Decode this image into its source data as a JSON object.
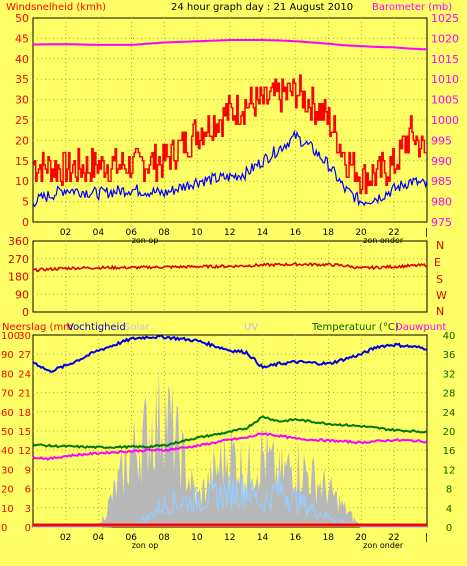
{
  "header": {
    "left_label": "Windsnelheid (kmh)",
    "title": "24 hour graph day : 21 August 2010",
    "right_label": "Barometer (mb)"
  },
  "x_axis": {
    "ticks": [
      "02",
      "04",
      "06",
      "08",
      "10",
      "12",
      "14",
      "16",
      "18",
      "20",
      "22"
    ],
    "sunrise_label": "zon op",
    "sunset_label": "zon onder"
  },
  "wind_panel": {
    "left_ticks": [
      "0",
      "5",
      "10",
      "15",
      "20",
      "25",
      "30",
      "35",
      "40",
      "45",
      "50"
    ],
    "right_ticks": [
      "975",
      "980",
      "985",
      "990",
      "995",
      "1000",
      "1005",
      "1010",
      "1015",
      "1020",
      "1025"
    ]
  },
  "direction_panel": {
    "left_ticks": [
      "0",
      "90",
      "180",
      "270",
      "360"
    ],
    "right_labels": [
      "N",
      "W",
      "S",
      "E",
      "N"
    ]
  },
  "bottom_panel": {
    "labels": {
      "neerslag": "Neerslag (mm",
      "vochtigheid": "Vochtigheid",
      "solar": "Solar",
      "uv": "UV",
      "temperatuur": "Temperatuur (°C)",
      "dauwpunt": "Dauwpunt"
    },
    "humidity_ticks": [
      "0",
      "10",
      "20",
      "30",
      "40",
      "50",
      "60",
      "70",
      "80",
      "90",
      "100"
    ],
    "rain_ticks": [
      "0",
      "3",
      "6",
      "9",
      "12",
      "15",
      "18",
      "21",
      "24",
      "27",
      "30"
    ],
    "temp_ticks": [
      "0",
      "4",
      "8",
      "12",
      "16",
      "20",
      "24",
      "28",
      "32",
      "36",
      "40"
    ]
  },
  "colors": {
    "background": "#ffff66",
    "wind_gust": "#ff0000",
    "wind_avg": "#0000ff",
    "barometer": "#ff00ff",
    "direction": "#dd0000",
    "humidity": "#0000dd",
    "temperature": "#007700",
    "dewpoint": "#ff00ff",
    "solar": "#b8b8b8",
    "uv": "#99ccff",
    "rain": "#ff0000"
  },
  "chart_data": [
    {
      "type": "line",
      "x": [
        0,
        2,
        4,
        6,
        8,
        10,
        12,
        13,
        14,
        15,
        16,
        17,
        18,
        19,
        20,
        21,
        22,
        23,
        24
      ],
      "xlim": [
        0,
        24
      ],
      "ylim": [
        0,
        50
      ],
      "series": [
        {
          "name": "Windsnelheid (kmh)",
          "axis": "left",
          "values": [
            14,
            13,
            14,
            14,
            15,
            22,
            27,
            29,
            29,
            31,
            32,
            29,
            25,
            16,
            11,
            12,
            14,
            22,
            16
          ]
        },
        {
          "name": "",
          "axis": "left",
          "values": [
            5,
            8,
            7,
            8,
            7,
            10,
            11,
            12,
            15,
            18,
            21,
            18,
            14,
            8,
            5,
            6,
            8,
            10,
            9
          ]
        },
        {
          "name": "Barometer (mb)",
          "axis": "right",
          "y2lim": [
            975,
            1025
          ],
          "values": [
            1018.5,
            1018.6,
            1018.4,
            1018.4,
            1019.0,
            1019.3,
            1019.6,
            1019.6,
            1019.6,
            1019.5,
            1019.3,
            1019.0,
            1018.7,
            1018.3,
            1018.1,
            1017.9,
            1017.8,
            1017.5,
            1017.3
          ]
        }
      ]
    },
    {
      "type": "line",
      "x": [
        0,
        2,
        4,
        6,
        8,
        10,
        12,
        14,
        16,
        18,
        19,
        20,
        22,
        24
      ],
      "xlim": [
        0,
        24
      ],
      "ylim": [
        0,
        360
      ],
      "series": [
        {
          "name": "",
          "values": [
            212,
            222,
            225,
            225,
            228,
            230,
            232,
            238,
            242,
            240,
            235,
            222,
            230,
            238
          ]
        }
      ]
    },
    {
      "type": "line",
      "x": [
        0,
        1,
        2,
        4,
        6,
        7,
        8,
        10,
        12,
        13,
        14,
        15,
        16,
        18,
        20,
        21,
        22,
        23,
        24
      ],
      "xlim": [
        0,
        24
      ],
      "series": [
        {
          "name": "Vochtigheid",
          "axis": "humidity",
          "ylim": [
            0,
            100
          ],
          "values": [
            86,
            81,
            84,
            92,
            98,
            99,
            99,
            97,
            92,
            91,
            83,
            85,
            86,
            85,
            90,
            94,
            95,
            94,
            93
          ]
        },
        {
          "name": "Temperatuur (°C)",
          "axis": "temperature",
          "ylim": [
            0,
            40
          ],
          "values": [
            17.2,
            16.9,
            16.8,
            16.6,
            16.7,
            16.7,
            17.0,
            18.6,
            19.8,
            20.6,
            23.0,
            22.0,
            22.4,
            21.5,
            21.0,
            20.6,
            20.2,
            20.0,
            19.8
          ]
        },
        {
          "name": "Dauwpunt",
          "axis": "temperature",
          "ylim": [
            0,
            40
          ],
          "values": [
            14.6,
            14.2,
            14.8,
            15.4,
            15.8,
            16.0,
            16.0,
            16.9,
            18.2,
            18.6,
            19.5,
            19.0,
            18.4,
            18.0,
            17.6,
            17.9,
            18.1,
            18.0,
            17.8
          ]
        },
        {
          "name": "Solar",
          "axis": "humidity",
          "ylim": [
            0,
            100
          ],
          "values": [
            0,
            0,
            0,
            0,
            40,
            52,
            65,
            15,
            42,
            30,
            40,
            28,
            35,
            20,
            0,
            0,
            0,
            0,
            0
          ]
        },
        {
          "name": "UV",
          "axis": "humidity",
          "ylim": [
            0,
            100
          ],
          "values": [
            0,
            0,
            0,
            0,
            1,
            5,
            12,
            14,
            18,
            20,
            12,
            20,
            14,
            5,
            0,
            0,
            0,
            0,
            0
          ]
        },
        {
          "name": "Neerslag (mm",
          "axis": "rain",
          "ylim": [
            0,
            30
          ],
          "values": [
            0,
            0,
            0,
            0,
            0,
            0,
            0,
            0,
            0,
            0,
            0,
            0,
            0,
            0,
            0,
            0,
            0,
            0,
            0
          ]
        }
      ],
      "sunrise_x": 6.5,
      "sunset_x": 20.6
    }
  ]
}
